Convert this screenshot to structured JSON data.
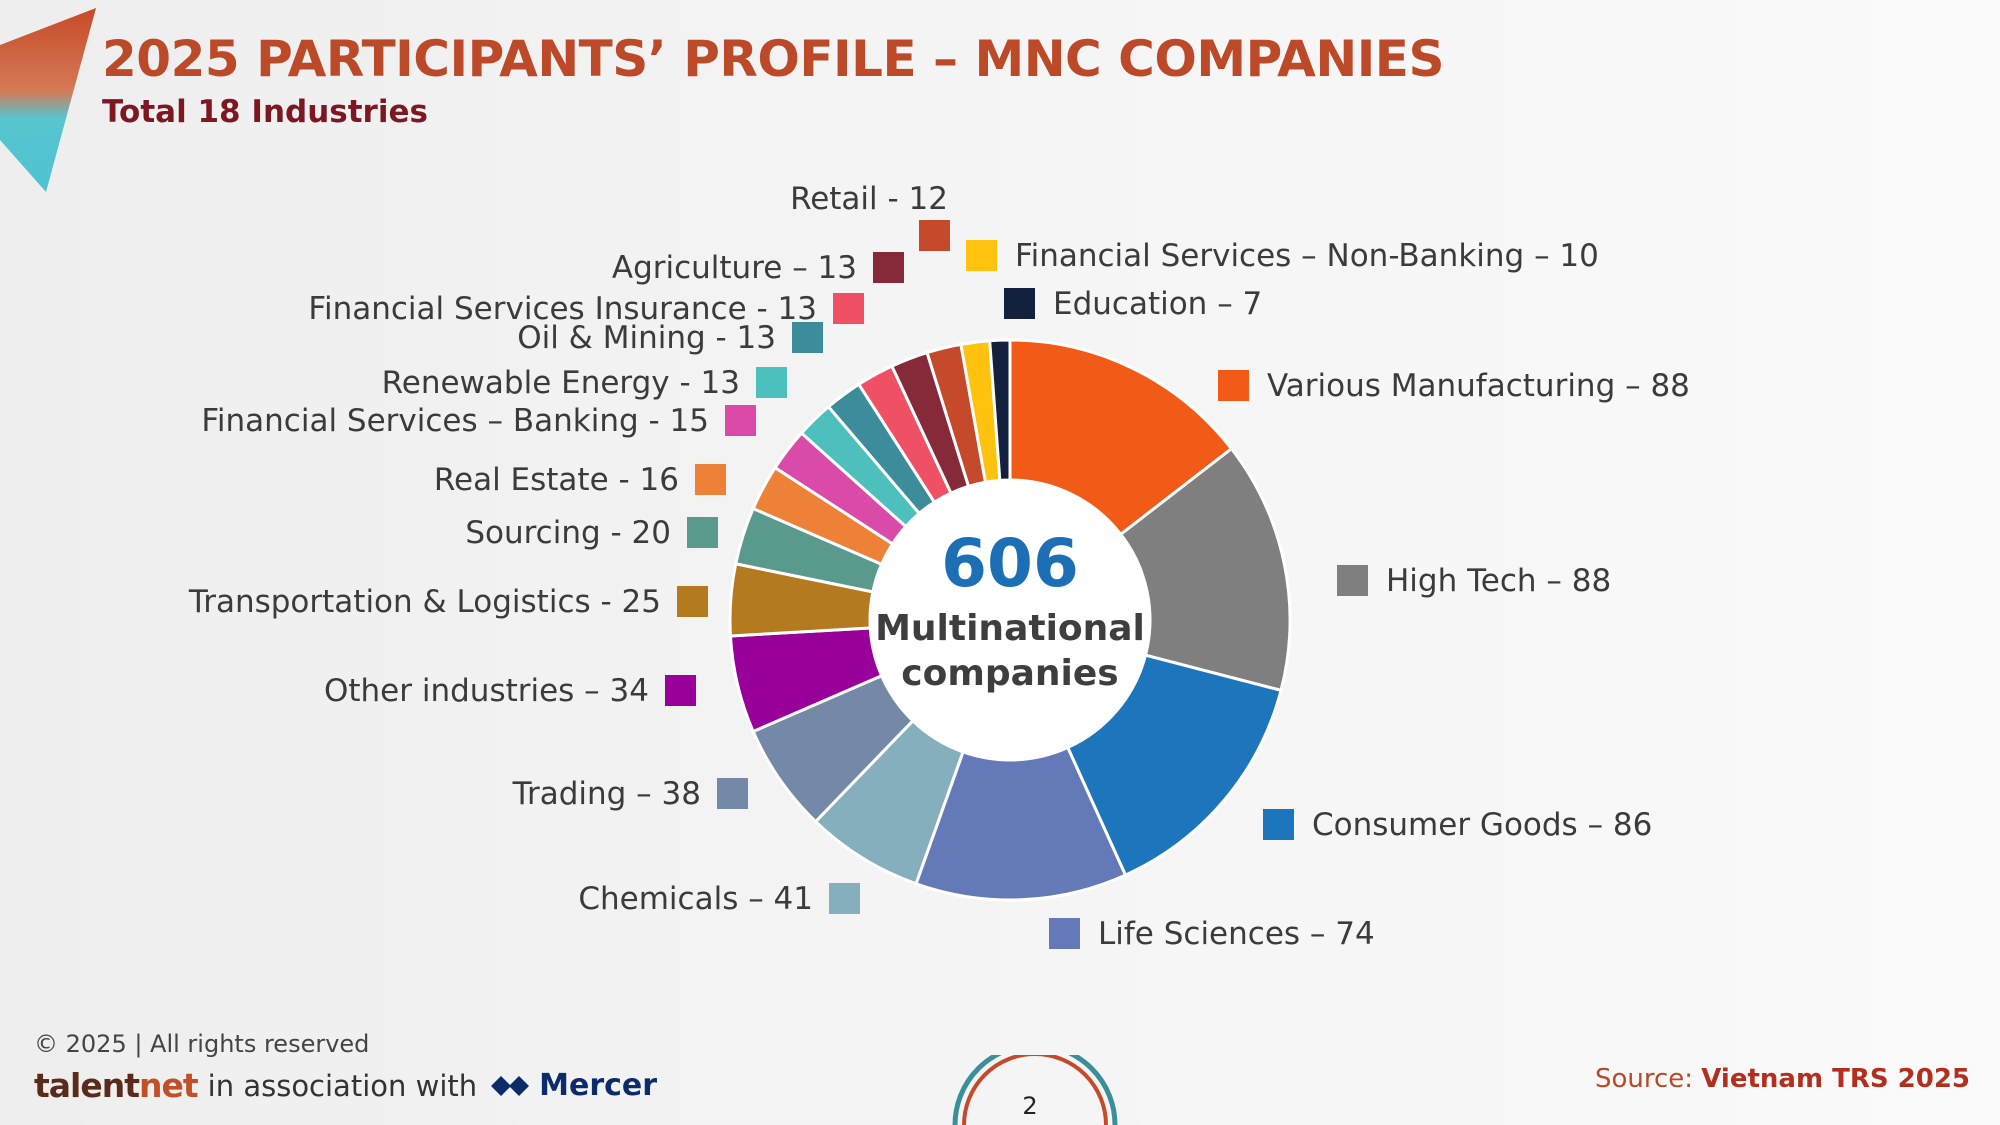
{
  "header": {
    "title": "2025 PARTICIPANTS’ PROFILE – MNC COMPANIES",
    "subtitle": "Total 18 Industries"
  },
  "center": {
    "number": "606",
    "line1": "Multinational",
    "line2": "companies"
  },
  "chart_data": {
    "type": "pie",
    "total": 606,
    "labels": [
      "Various Manufacturing – 88",
      "High Tech – 88",
      "Consumer Goods – 86",
      "Life Sciences – 74",
      "Chemicals – 41",
      "Trading – 38",
      "Other industries – 34",
      "Transportation & Logistics - 25",
      "Sourcing - 20",
      "Real Estate - 16",
      "Financial Services – Banking - 15",
      "Renewable Energy - 13",
      "Oil & Mining - 13",
      "Financial Services Insurance - 13",
      "Agriculture – 13",
      "Retail - 12",
      "Financial Services – Non-Banking – 10",
      "Education – 7"
    ],
    "values": [
      88,
      88,
      86,
      74,
      41,
      38,
      34,
      25,
      20,
      16,
      15,
      13,
      13,
      13,
      13,
      12,
      10,
      7
    ],
    "colors": [
      "#f15a17",
      "#7f7f7f",
      "#1d75bc",
      "#6479b7",
      "#86afbd",
      "#7489a8",
      "#990099",
      "#b37a20",
      "#5a9a8c",
      "#ee8138",
      "#d94aa9",
      "#4dbfbd",
      "#3d8c9c",
      "#f05064",
      "#862a3a",
      "#c54a2c",
      "#ffc20e",
      "#13213f"
    ]
  },
  "footer": {
    "copyright": "© 2025 | All rights reserved",
    "brand_talent": "talent",
    "brand_net": "net",
    "association": "in association with",
    "mercer": "Mercer",
    "source_label": "Source: ",
    "source_value": "Vietnam TRS 2025",
    "page_number": "2"
  }
}
